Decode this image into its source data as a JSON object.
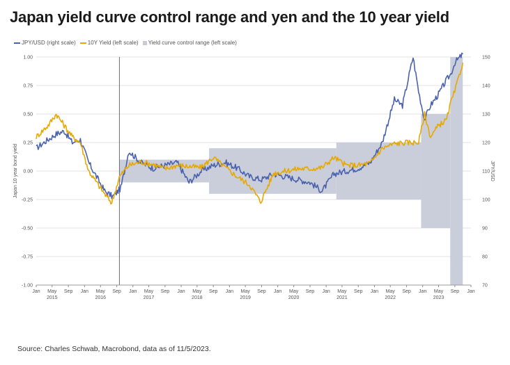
{
  "title": "Japan yield curve control range and yen and the 10 year yield",
  "source": "Source: Charles Schwab, Macrobond, data as of 11/5/2023.",
  "legend": {
    "jpy": "JPY/USD (right scale)",
    "yield": "10Y Yield (left scale)",
    "band": "Yield curve control range (left scale)"
  },
  "colors": {
    "jpy": "#4a62ad",
    "yield": "#e8a800",
    "band": "#c7cbd8",
    "grid": "#e3e3e3"
  },
  "axes": {
    "left_label": "Japan 10 year bond yield",
    "right_label": "JPY/USD",
    "left_ticks": [
      "1.00",
      "0.75",
      "0.50",
      "0.25",
      "0.00",
      "-0.25",
      "-0.50",
      "-0.75",
      "-1.00"
    ],
    "right_ticks": [
      "150",
      "140",
      "130",
      "120",
      "110",
      "100",
      "90",
      "80",
      "70"
    ],
    "month_ticks": [
      "Jan",
      "May",
      "Sep",
      "Jan",
      "May",
      "Sep",
      "Jan",
      "May",
      "Sep",
      "Jan",
      "May",
      "Sep",
      "Jan",
      "May",
      "Sep",
      "Jan",
      "May",
      "Sep",
      "Jan",
      "May",
      "Sep",
      "Jan",
      "May",
      "Sep",
      "Jan",
      "May",
      "Sep",
      "Jan"
    ],
    "year_labels": [
      "2015",
      "2016",
      "2017",
      "2018",
      "2019",
      "2020",
      "2021",
      "2022",
      "2023"
    ]
  },
  "chart_data": {
    "type": "line",
    "x_unit": "date",
    "ylim_left": [
      -1.0,
      1.0
    ],
    "ylim_right": [
      70,
      150
    ],
    "xlim": [
      "2015-01-01",
      "2024-01-01"
    ],
    "grid": true,
    "marker_line_date": "2016-09-21",
    "yield_curve_control_range": [
      {
        "start": "2016-09-21",
        "end": "2018-07-31",
        "low": -0.1,
        "high": 0.1
      },
      {
        "start": "2018-07-31",
        "end": "2021-03-19",
        "low": -0.2,
        "high": 0.2
      },
      {
        "start": "2021-03-19",
        "end": "2022-12-20",
        "low": -0.25,
        "high": 0.25
      },
      {
        "start": "2022-12-20",
        "end": "2023-07-28",
        "low": -0.5,
        "high": 0.5
      },
      {
        "start": "2023-07-28",
        "end": "2023-10-31",
        "low": -1.0,
        "high": 1.0
      }
    ],
    "series": [
      {
        "name": "JPY/USD (right scale)",
        "axis": "right",
        "x": [
          "2015-01-01",
          "2015-03-01",
          "2015-06-01",
          "2015-08-01",
          "2015-10-01",
          "2015-12-01",
          "2016-02-01",
          "2016-04-01",
          "2016-06-01",
          "2016-08-01",
          "2016-10-01",
          "2016-12-01",
          "2017-03-01",
          "2017-06-01",
          "2017-09-01",
          "2017-12-01",
          "2018-03-01",
          "2018-06-01",
          "2018-09-01",
          "2018-12-01",
          "2019-03-01",
          "2019-06-01",
          "2019-09-01",
          "2019-12-01",
          "2020-03-01",
          "2020-06-01",
          "2020-09-01",
          "2020-12-01",
          "2021-03-01",
          "2021-06-01",
          "2021-09-01",
          "2021-12-01",
          "2022-03-01",
          "2022-06-01",
          "2022-08-01",
          "2022-10-20",
          "2022-12-01",
          "2023-01-15",
          "2023-03-01",
          "2023-05-01",
          "2023-07-01",
          "2023-08-01",
          "2023-09-01",
          "2023-10-31"
        ],
        "values": [
          118,
          120,
          123,
          124,
          120,
          121,
          113,
          108,
          103,
          101,
          104,
          117,
          113,
          111,
          112,
          113,
          106,
          110,
          112,
          113,
          111,
          108,
          107,
          109,
          108,
          107,
          106,
          103,
          109,
          110,
          111,
          113,
          120,
          135,
          133,
          150,
          138,
          128,
          133,
          137,
          142,
          144,
          148,
          151
        ]
      },
      {
        "name": "10Y Yield (left scale)",
        "axis": "left",
        "x": [
          "2015-01-01",
          "2015-04-01",
          "2015-06-01",
          "2015-08-01",
          "2015-10-01",
          "2015-12-01",
          "2016-02-01",
          "2016-04-01",
          "2016-06-01",
          "2016-07-25",
          "2016-09-21",
          "2016-12-01",
          "2017-03-01",
          "2017-06-01",
          "2017-09-01",
          "2017-12-01",
          "2018-03-01",
          "2018-06-01",
          "2018-09-01",
          "2018-12-01",
          "2019-03-01",
          "2019-06-01",
          "2019-08-25",
          "2019-12-01",
          "2020-03-01",
          "2020-06-01",
          "2020-09-01",
          "2020-12-01",
          "2021-03-01",
          "2021-06-01",
          "2021-09-01",
          "2021-12-01",
          "2022-03-01",
          "2022-06-01",
          "2022-09-01",
          "2022-12-01",
          "2023-01-15",
          "2023-03-01",
          "2023-05-01",
          "2023-07-01",
          "2023-08-01",
          "2023-09-01",
          "2023-10-31"
        ],
        "values": [
          0.3,
          0.4,
          0.5,
          0.4,
          0.3,
          0.25,
          0.0,
          -0.1,
          -0.2,
          -0.28,
          -0.05,
          0.05,
          0.08,
          0.06,
          0.02,
          0.05,
          0.04,
          0.03,
          0.12,
          0.03,
          -0.05,
          -0.12,
          -0.27,
          -0.02,
          0.0,
          0.02,
          0.02,
          0.03,
          0.12,
          0.05,
          0.05,
          0.07,
          0.2,
          0.24,
          0.25,
          0.25,
          0.5,
          0.3,
          0.4,
          0.45,
          0.6,
          0.7,
          0.95
        ]
      }
    ]
  }
}
